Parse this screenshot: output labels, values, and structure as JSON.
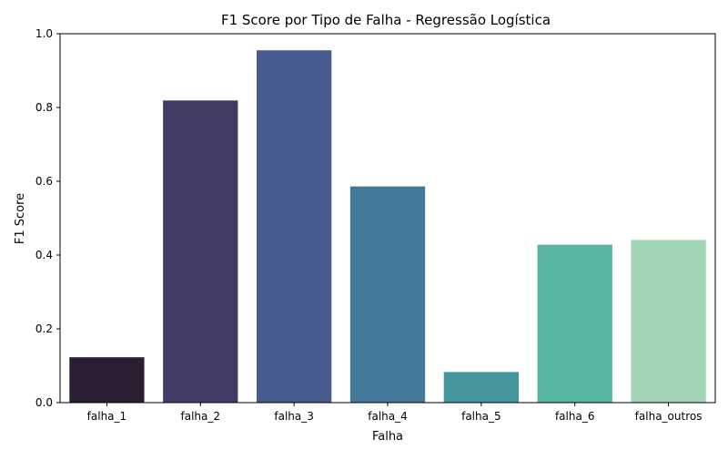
{
  "chart_data": {
    "type": "bar",
    "title": "F1 Score por Tipo de Falha - Regressão Logística",
    "xlabel": "Falha",
    "ylabel": "F1 Score",
    "categories": [
      "falha_1",
      "falha_2",
      "falha_3",
      "falha_4",
      "falha_5",
      "falha_6",
      "falha_outros"
    ],
    "values": [
      0.123,
      0.819,
      0.955,
      0.586,
      0.083,
      0.428,
      0.441
    ],
    "colors": [
      "#2b1e33",
      "#413b65",
      "#485b8f",
      "#437899",
      "#45959e",
      "#59b5a3",
      "#a1d5b6"
    ],
    "ylim": [
      0,
      1.0
    ],
    "yticks": [
      0.0,
      0.2,
      0.4,
      0.6,
      0.8,
      1.0
    ],
    "ytick_labels": [
      "0.0",
      "0.2",
      "0.4",
      "0.6",
      "0.8",
      "1.0"
    ],
    "grid": false,
    "legend": false
  }
}
